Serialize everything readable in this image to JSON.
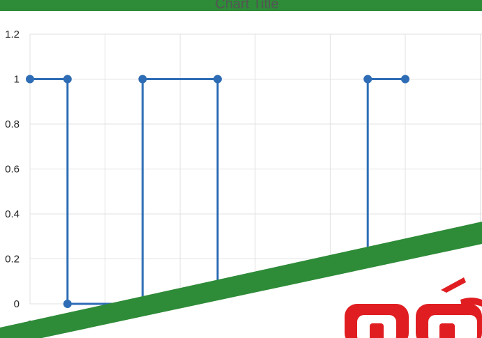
{
  "chart_data": {
    "type": "line",
    "title": "Chart Title",
    "xlabel": "",
    "ylabel": "",
    "x_tick_labels": [
      "0"
    ],
    "y_tick_labels": [
      "0",
      "0.2",
      "0.4",
      "0.6",
      "0.8",
      "1",
      "1.2"
    ],
    "y_ticks": [
      0,
      0.2,
      0.4,
      0.6,
      0.8,
      1,
      1.2
    ],
    "ylim": [
      0,
      1.2
    ],
    "xlim": [
      0,
      10
    ],
    "grid": true,
    "colors": {
      "series": "#2e6db5",
      "grid": "#e0e0e0",
      "axis_text": "#222222"
    },
    "series": [
      {
        "markers": true,
        "points": [
          {
            "x": 0,
            "y": 1
          },
          {
            "x": 1,
            "y": 1
          },
          {
            "x": 1,
            "y": 0
          },
          {
            "x": 3,
            "y": 0
          },
          {
            "x": 3,
            "y": 1
          },
          {
            "x": 5,
            "y": 1
          },
          {
            "x": 5,
            "y": 0
          },
          {
            "x": 9,
            "y": 0
          },
          {
            "x": 9,
            "y": 1
          },
          {
            "x": 10,
            "y": 1
          }
        ]
      }
    ]
  },
  "theme": {
    "frame_green": "#2e8b38",
    "logo_red": "#e01e22"
  }
}
